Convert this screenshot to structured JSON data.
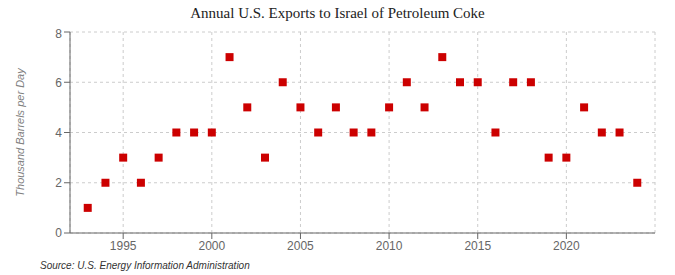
{
  "chart_data": {
    "type": "scatter",
    "title": "Annual U.S. Exports to Israel of Petroleum Coke",
    "ylabel": "Thousand Barrels per Day",
    "annotation": "Source: U.S. Energy Information Administration",
    "x": [
      1993,
      1994,
      1995,
      1996,
      1997,
      1998,
      1999,
      2000,
      2001,
      2002,
      2003,
      2004,
      2005,
      2006,
      2007,
      2008,
      2009,
      2010,
      2011,
      2012,
      2013,
      2014,
      2015,
      2016,
      2017,
      2018,
      2019,
      2020,
      2021,
      2022,
      2023,
      2024
    ],
    "values": [
      1,
      2,
      3,
      2,
      3,
      4,
      4,
      4,
      7,
      5,
      3,
      6,
      5,
      4,
      5,
      4,
      4,
      5,
      6,
      5,
      7,
      6,
      6,
      4,
      6,
      6,
      3,
      3,
      5,
      4,
      4,
      2
    ],
    "color": "#cc0000",
    "marker": "square",
    "xlim": [
      1992,
      2025
    ],
    "ylim": [
      0,
      8
    ],
    "xticks": [
      1995,
      2000,
      2005,
      2010,
      2015,
      2020
    ],
    "yticks": [
      0,
      2,
      4,
      6,
      8
    ],
    "grid": true
  }
}
